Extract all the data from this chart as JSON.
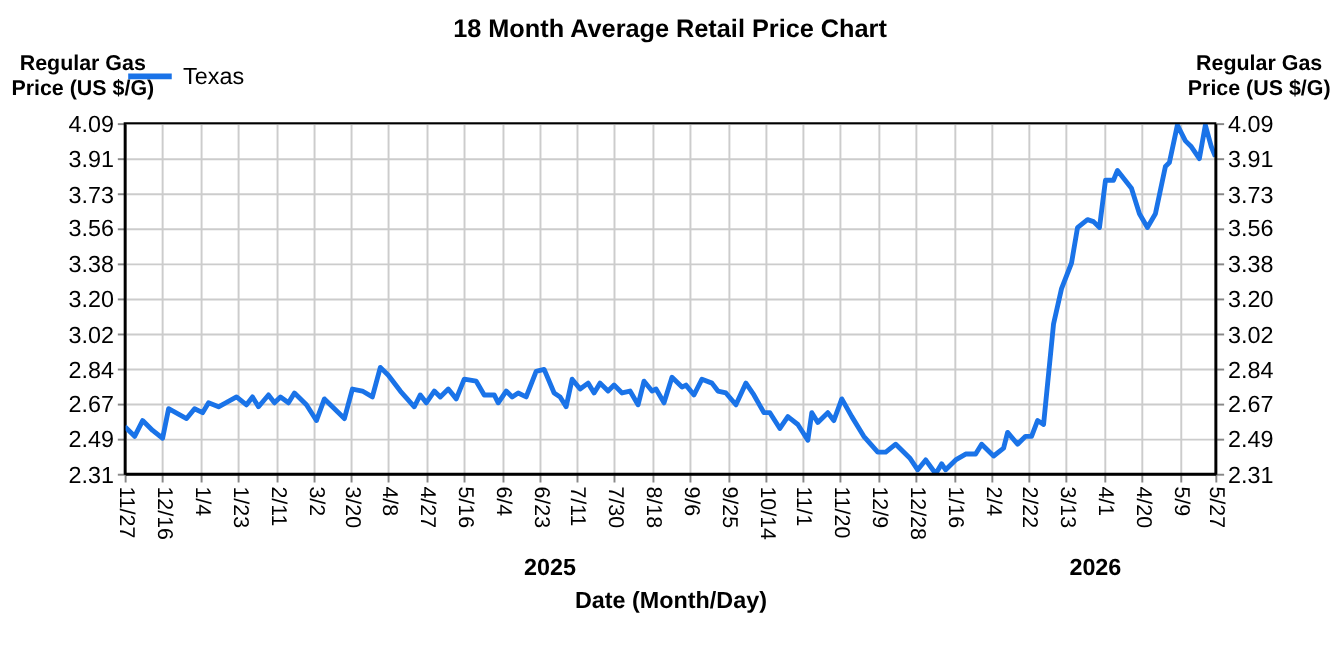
{
  "chart_data": {
    "type": "line",
    "title": "18 Month Average Retail Price Chart",
    "xlabel": "Date (Month/Day)",
    "ylabel": "Regular Gas Price (US $/G)",
    "y2label": "Regular Gas Price (US $/G)",
    "annotations": [
      "2025",
      "2026"
    ],
    "xlim": [
      "2024-11-27",
      "2026-05-27"
    ],
    "xticks": [
      {
        "value": "2024-11-27",
        "label": "11/27"
      },
      {
        "value": "2024-12-16",
        "label": "12/16"
      },
      {
        "value": "2025-01-04",
        "label": "1/4"
      },
      {
        "value": "2025-01-23",
        "label": "1/23"
      },
      {
        "value": "2025-02-11",
        "label": "2/11"
      },
      {
        "value": "2025-03-02",
        "label": "3/2"
      },
      {
        "value": "2025-03-20",
        "label": "3/20"
      },
      {
        "value": "2025-04-08",
        "label": "4/8"
      },
      {
        "value": "2025-04-27",
        "label": "4/27"
      },
      {
        "value": "2025-05-16",
        "label": "5/16"
      },
      {
        "value": "2025-06-04",
        "label": "6/4"
      },
      {
        "value": "2025-06-23",
        "label": "6/23"
      },
      {
        "value": "2025-07-11",
        "label": "7/11"
      },
      {
        "value": "2025-07-30",
        "label": "7/30"
      },
      {
        "value": "2025-08-18",
        "label": "8/18"
      },
      {
        "value": "2025-09-06",
        "label": "9/6"
      },
      {
        "value": "2025-09-25",
        "label": "9/25"
      },
      {
        "value": "2025-10-14",
        "label": "10/14"
      },
      {
        "value": "2025-11-01",
        "label": "11/1"
      },
      {
        "value": "2025-11-20",
        "label": "11/20"
      },
      {
        "value": "2025-12-09",
        "label": "12/9"
      },
      {
        "value": "2025-12-28",
        "label": "12/28"
      },
      {
        "value": "2026-01-16",
        "label": "1/16"
      },
      {
        "value": "2026-02-04",
        "label": "2/4"
      },
      {
        "value": "2026-02-22",
        "label": "2/22"
      },
      {
        "value": "2026-03-13",
        "label": "3/13"
      },
      {
        "value": "2026-04-01",
        "label": "4/1"
      },
      {
        "value": "2026-04-20",
        "label": "4/20"
      },
      {
        "value": "2026-05-09",
        "label": "5/9"
      },
      {
        "value": "2026-05-27",
        "label": "5/27"
      }
    ],
    "ylim": [
      2.31,
      4.09
    ],
    "yticks": [
      2.31,
      2.49,
      2.67,
      2.84,
      3.02,
      {
        "value": 3.2,
        "label": "3.20"
      },
      3.38,
      3.56,
      3.73,
      3.91,
      4.09
    ],
    "y2lim": [
      2.31,
      4.09
    ],
    "y2ticks": [
      2.31,
      2.49,
      2.67,
      2.84,
      3.02,
      {
        "value": 3.2,
        "label": "3.20"
      },
      3.38,
      3.56,
      3.73,
      3.91,
      4.09
    ],
    "grid": true,
    "legend": "top",
    "marker": "none",
    "line_style": "solid",
    "x": [
      "2024-11-27",
      "2024-12-02",
      "2024-12-06",
      "2024-12-11",
      "2024-12-16",
      "2024-12-19",
      "2024-12-28",
      "2025-01-01",
      "2025-01-05",
      "2025-01-08",
      "2025-01-13",
      "2025-01-22",
      "2025-01-27",
      "2025-01-30",
      "2025-02-02",
      "2025-02-07",
      "2025-02-10",
      "2025-02-13",
      "2025-02-17",
      "2025-02-20",
      "2025-02-26",
      "2025-03-03",
      "2025-03-07",
      "2025-03-11",
      "2025-03-17",
      "2025-03-21",
      "2025-03-26",
      "2025-03-31",
      "2025-04-04",
      "2025-04-08",
      "2025-04-14",
      "2025-04-21",
      "2025-04-24",
      "2025-04-27",
      "2025-05-01",
      "2025-05-04",
      "2025-05-08",
      "2025-05-12",
      "2025-05-16",
      "2025-05-22",
      "2025-05-26",
      "2025-05-31",
      "2025-06-02",
      "2025-06-06",
      "2025-06-09",
      "2025-06-12",
      "2025-06-16",
      "2025-06-21",
      "2025-06-25",
      "2025-06-30",
      "2025-07-03",
      "2025-07-06",
      "2025-07-09",
      "2025-07-13",
      "2025-07-17",
      "2025-07-20",
      "2025-07-23",
      "2025-07-27",
      "2025-07-30",
      "2025-08-03",
      "2025-08-07",
      "2025-08-11",
      "2025-08-14",
      "2025-08-18",
      "2025-08-20",
      "2025-08-24",
      "2025-08-28",
      "2025-09-02",
      "2025-09-04",
      "2025-09-08",
      "2025-09-12",
      "2025-09-17",
      "2025-09-20",
      "2025-09-24",
      "2025-09-29",
      "2025-10-04",
      "2025-10-08",
      "2025-10-13",
      "2025-10-16",
      "2025-10-21",
      "2025-10-25",
      "2025-10-30",
      "2025-11-04",
      "2025-11-06",
      "2025-11-09",
      "2025-11-14",
      "2025-11-17",
      "2025-11-21",
      "2025-11-26",
      "2025-12-02",
      "2025-12-09",
      "2025-12-13",
      "2025-12-18",
      "2025-12-25",
      "2025-12-29",
      "2026-01-02",
      "2026-01-07",
      "2026-01-10",
      "2026-01-12",
      "2026-01-17",
      "2026-01-22",
      "2026-01-27",
      "2026-01-30",
      "2026-02-05",
      "2026-02-10",
      "2026-02-12",
      "2026-02-17",
      "2026-02-21",
      "2026-02-24",
      "2026-02-27",
      "2026-03-02",
      "2026-03-07",
      "2026-03-11",
      "2026-03-16",
      "2026-03-19",
      "2026-03-24",
      "2026-03-27",
      "2026-03-30",
      "2026-04-02",
      "2026-04-06",
      "2026-04-08",
      "2026-04-15",
      "2026-04-19",
      "2026-04-23",
      "2026-04-27",
      "2026-05-02",
      "2026-05-04",
      "2026-05-08",
      "2026-05-12",
      "2026-05-15",
      "2026-05-19",
      "2026-05-22",
      "2026-05-25",
      "2026-05-27"
    ],
    "series": [
      {
        "name": "Texas",
        "color": "#1a73e8",
        "values": [
          2.55,
          2.5,
          2.58,
          2.53,
          2.49,
          2.64,
          2.59,
          2.64,
          2.62,
          2.67,
          2.65,
          2.7,
          2.66,
          2.7,
          2.65,
          2.71,
          2.67,
          2.7,
          2.67,
          2.72,
          2.66,
          2.58,
          2.69,
          2.65,
          2.59,
          2.74,
          2.73,
          2.7,
          2.85,
          2.81,
          2.73,
          2.65,
          2.71,
          2.67,
          2.73,
          2.7,
          2.74,
          2.69,
          2.79,
          2.78,
          2.71,
          2.71,
          2.67,
          2.73,
          2.7,
          2.72,
          2.7,
          2.83,
          2.84,
          2.72,
          2.7,
          2.65,
          2.79,
          2.74,
          2.77,
          2.72,
          2.77,
          2.73,
          2.76,
          2.72,
          2.73,
          2.66,
          2.78,
          2.73,
          2.74,
          2.67,
          2.8,
          2.75,
          2.76,
          2.71,
          2.79,
          2.77,
          2.73,
          2.72,
          2.66,
          2.77,
          2.71,
          2.62,
          2.62,
          2.54,
          2.6,
          2.56,
          2.48,
          2.62,
          2.57,
          2.62,
          2.58,
          2.69,
          2.6,
          2.5,
          2.42,
          2.42,
          2.46,
          2.39,
          2.33,
          2.38,
          2.31,
          2.36,
          2.33,
          2.38,
          2.41,
          2.41,
          2.46,
          2.4,
          2.44,
          2.52,
          2.46,
          2.5,
          2.5,
          2.58,
          2.56,
          3.07,
          3.25,
          3.38,
          3.56,
          3.6,
          3.59,
          3.56,
          3.8,
          3.8,
          3.85,
          3.76,
          3.63,
          3.56,
          3.63,
          3.87,
          3.89,
          4.08,
          4.0,
          3.97,
          3.91,
          4.08,
          3.97,
          3.92
        ]
      }
    ]
  }
}
